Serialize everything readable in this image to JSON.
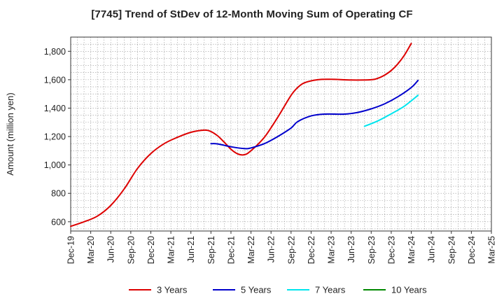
{
  "chart_data": {
    "type": "line",
    "title": "[7745]  Trend of StDev of 12-Month Moving Sum of Operating CF",
    "xlabel": "",
    "ylabel": "Amount (million yen)",
    "x_ticks": [
      "Dec-19",
      "Mar-20",
      "Jun-20",
      "Sep-20",
      "Dec-20",
      "Mar-21",
      "Jun-21",
      "Sep-21",
      "Dec-21",
      "Mar-22",
      "Jun-22",
      "Sep-22",
      "Dec-22",
      "Mar-23",
      "Jun-23",
      "Sep-23",
      "Dec-23",
      "Mar-24",
      "Jun-24",
      "Sep-24",
      "Dec-24",
      "Mar-25"
    ],
    "y_ticks": [
      600,
      800,
      1000,
      1200,
      1400,
      1600,
      1800
    ],
    "y_tick_labels": [
      "600",
      "800",
      "1,000",
      "1,200",
      "1,400",
      "1,600",
      "1,800"
    ],
    "ylim": [
      535,
      1900
    ],
    "grid": true,
    "legend_position": "bottom",
    "series": [
      {
        "name": "3 Years",
        "color": "#dd0000",
        "values": [
          [
            "Dec-19",
            568
          ],
          [
            "Feb-20",
            600
          ],
          [
            "Apr-20",
            640
          ],
          [
            "Jun-20",
            715
          ],
          [
            "Aug-20",
            830
          ],
          [
            "Oct-20",
            975
          ],
          [
            "Dec-20",
            1080
          ],
          [
            "Feb-21",
            1150
          ],
          [
            "Apr-21",
            1195
          ],
          [
            "Jun-21",
            1230
          ],
          [
            "Aug-21",
            1245
          ],
          [
            "Sep-21",
            1235
          ],
          [
            "Oct-21",
            1205
          ],
          [
            "Nov-21",
            1160
          ],
          [
            "Dec-21",
            1110
          ],
          [
            "Jan-22",
            1078
          ],
          [
            "Feb-22",
            1072
          ],
          [
            "Mar-22",
            1100
          ],
          [
            "May-22",
            1195
          ],
          [
            "Jul-22",
            1335
          ],
          [
            "Sep-22",
            1490
          ],
          [
            "Oct-22",
            1545
          ],
          [
            "Nov-22",
            1578
          ],
          [
            "Jan-23",
            1600
          ],
          [
            "Mar-23",
            1603
          ],
          [
            "Jun-23",
            1598
          ],
          [
            "Sep-23",
            1600
          ],
          [
            "Oct-23",
            1610
          ],
          [
            "Nov-23",
            1632
          ],
          [
            "Dec-23",
            1665
          ],
          [
            "Jan-24",
            1712
          ],
          [
            "Feb-24",
            1775
          ],
          [
            "Mar-24",
            1855
          ]
        ]
      },
      {
        "name": "5 Years",
        "color": "#0000cc",
        "values": [
          [
            "Sep-21",
            1150
          ],
          [
            "Oct-21",
            1148
          ],
          [
            "Dec-21",
            1128
          ],
          [
            "Feb-22",
            1115
          ],
          [
            "Mar-22",
            1120
          ],
          [
            "May-22",
            1150
          ],
          [
            "Jul-22",
            1200
          ],
          [
            "Sep-22",
            1260
          ],
          [
            "Oct-22",
            1305
          ],
          [
            "Dec-22",
            1345
          ],
          [
            "Feb-23",
            1358
          ],
          [
            "May-23",
            1358
          ],
          [
            "Jul-23",
            1370
          ],
          [
            "Sep-23",
            1395
          ],
          [
            "Nov-23",
            1430
          ],
          [
            "Jan-24",
            1480
          ],
          [
            "Mar-24",
            1545
          ],
          [
            "Apr-24",
            1595
          ]
        ]
      },
      {
        "name": "7 Years",
        "color": "#00e5ee",
        "values": [
          [
            "Aug-23",
            1272
          ],
          [
            "Oct-23",
            1310
          ],
          [
            "Dec-23",
            1360
          ],
          [
            "Feb-24",
            1415
          ],
          [
            "Apr-24",
            1490
          ]
        ]
      },
      {
        "name": "10 Years",
        "color": "#008800",
        "values": []
      }
    ]
  }
}
